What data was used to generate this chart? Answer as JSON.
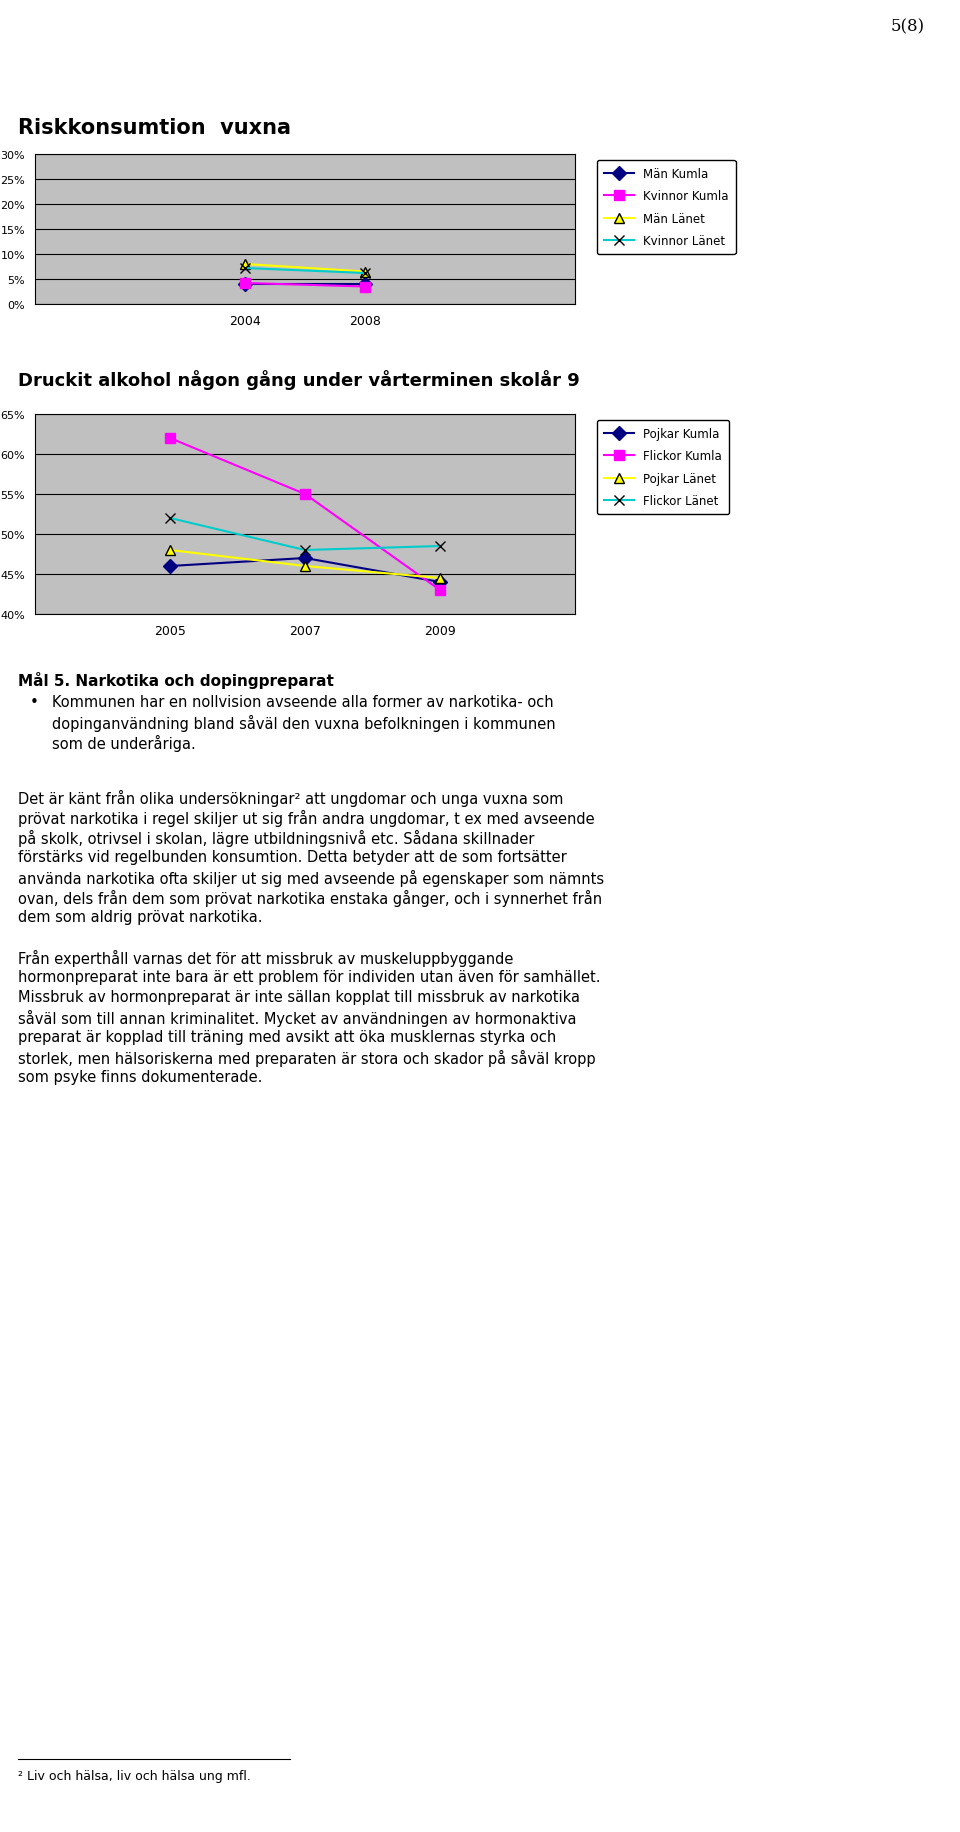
{
  "page_num": "5(8)",
  "chart1": {
    "title": "Riskkonsumtion  vuxna",
    "x": [
      2004,
      2008
    ],
    "series": {
      "Män Kumla": [
        4.0,
        4.0
      ],
      "Kvinnor Kumla": [
        4.2,
        3.5
      ],
      "Män Länet": [
        8.0,
        6.5
      ],
      "Kvinnor Länet": [
        7.2,
        6.2
      ]
    },
    "colors": {
      "Män Kumla": "#000080",
      "Kvinnor Kumla": "#FF00FF",
      "Män Länet": "#FFFF00",
      "Kvinnor Länet": "#00CCCC"
    },
    "markers": {
      "Män Kumla": "D",
      "Kvinnor Kumla": "s",
      "Män Länet": "^",
      "Kvinnor Länet": "x"
    },
    "ylim": [
      0,
      30
    ],
    "yticks": [
      0,
      5,
      10,
      15,
      20,
      25,
      30
    ],
    "ytick_labels": [
      "0%",
      "5%",
      "10%",
      "15%",
      "20%",
      "25%",
      "30%"
    ]
  },
  "chart2": {
    "title": "Druckit alkohol någon gång under vårterminen skolår 9",
    "x": [
      2005,
      2007,
      2009
    ],
    "series": {
      "Pojkar Kumla": [
        46.0,
        47.0,
        44.0
      ],
      "Flickor Kumla": [
        62.0,
        55.0,
        43.0
      ],
      "Pojkar Länet": [
        48.0,
        46.0,
        44.5
      ],
      "Flickor Länet": [
        52.0,
        48.0,
        48.5
      ]
    },
    "colors": {
      "Pojkar Kumla": "#000080",
      "Flickor Kumla": "#FF00FF",
      "Pojkar Länet": "#FFFF00",
      "Flickor Länet": "#00CCCC"
    },
    "markers": {
      "Pojkar Kumla": "D",
      "Flickor Kumla": "s",
      "Pojkar Länet": "^",
      "Flickor Länet": "x"
    },
    "ylim": [
      40,
      65
    ],
    "yticks": [
      40,
      45,
      50,
      55,
      60,
      65
    ],
    "ytick_labels": [
      "40%",
      "45%",
      "50%",
      "55%",
      "60%",
      "65%"
    ]
  },
  "section_heading_bold": "Mål 5. Narkotika och dopingpreparat",
  "bullet_text_lines": [
    "Kommunen har en nollvision avseende alla former av narkotika- och",
    "dopinganvändning bland såväl den vuxna befolkningen i kommunen",
    "som de underåriga."
  ],
  "paragraph1_lines": [
    "Det är känt från olika undersökningar² att ungdomar och unga vuxna som",
    "prövat narkotika i regel skiljer ut sig från andra ungdomar, t ex med avseende",
    "på skolk, otrivsel i skolan, lägre utbildningsnivå etc. Sådana skillnader",
    "förstärks vid regelbunden konsumtion. Detta betyder att de som fortsätter",
    "använda narkotika ofta skiljer ut sig med avseende på egenskaper som nämnts",
    "ovan, dels från dem som prövat narkotika enstaka gånger, och i synnerhet från",
    "dem som aldrig prövat narkotika."
  ],
  "paragraph2_lines": [
    "Från experthåll varnas det för att missbruk av muskeluppbyggande",
    "hormonpreparat inte bara är ett problem för individen utan även för samhället.",
    "Missbruk av hormonpreparat är inte sällan kopplat till missbruk av narkotika",
    "såväl som till annan kriminalitet. Mycket av användningen av hormonaktiva",
    "preparat är kopplad till träning med avsikt att öka musklernas styrka och",
    "storlek, men hälsoriskerna med preparaten är stora och skador på såväl kropp",
    "som psyke finns dokumenterade."
  ],
  "footnote": "² Liv och hälsa, liv och hälsa ung mfl.",
  "bg_color": "#C0C0C0"
}
